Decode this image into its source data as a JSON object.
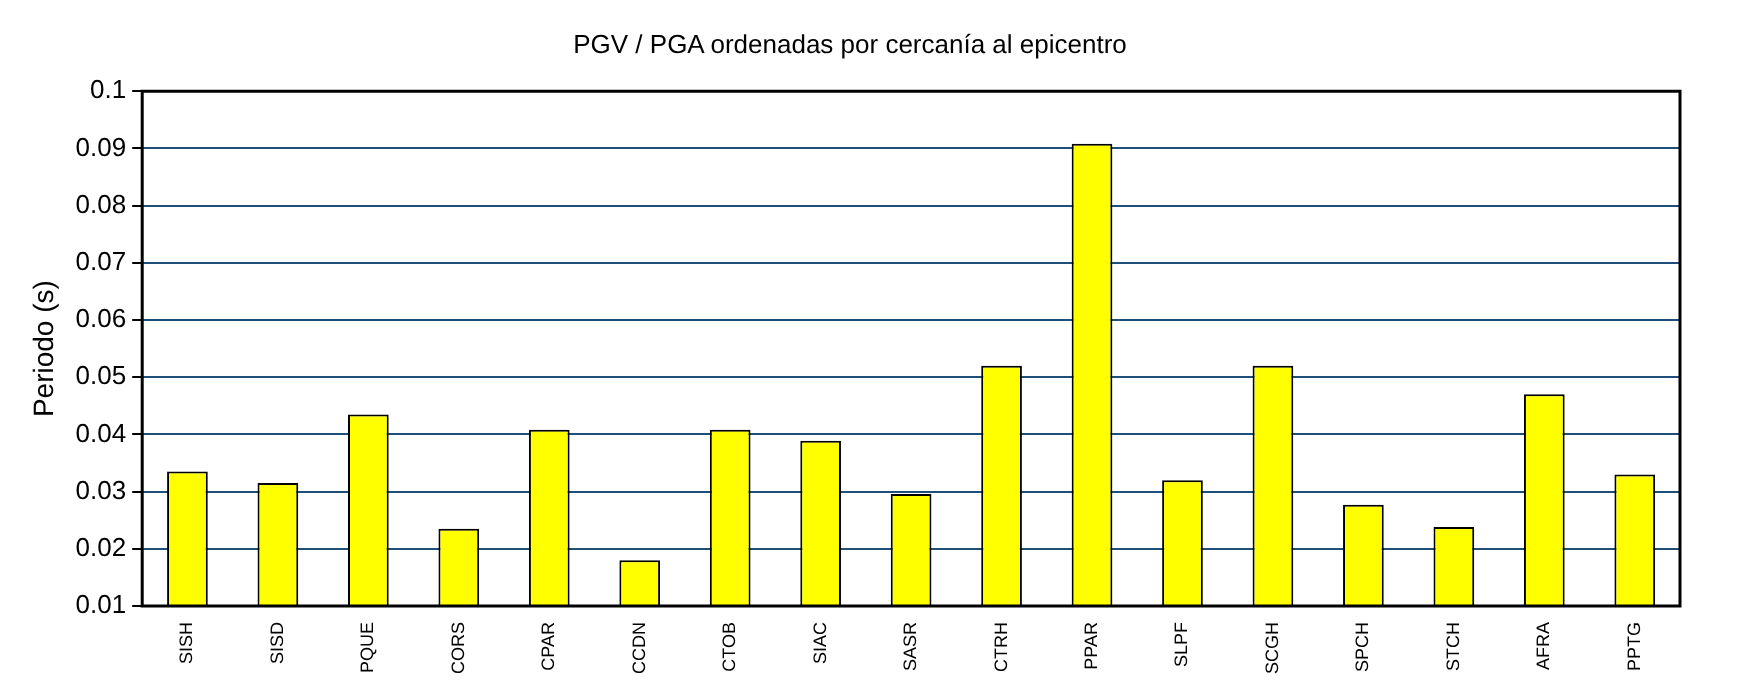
{
  "chart_data": {
    "type": "bar",
    "title": "PGV / PGA ordenadas por cercanía al epicentro",
    "ylabel": "Periodo (s)",
    "categories": [
      "SISH",
      "SISD",
      "PQUE",
      "CORS",
      "CPAR",
      "CCDN",
      "CTOB",
      "SIAC",
      "SASR",
      "CTRH",
      "PPAR",
      "SLPF",
      "SCGH",
      "SPCH",
      "STCH",
      "AFRA",
      "PPTG"
    ],
    "values": [
      0.0335,
      0.0315,
      0.0435,
      0.0235,
      0.0408,
      0.018,
      0.0408,
      0.0389,
      0.0296,
      0.052,
      0.0908,
      0.032,
      0.052,
      0.0277,
      0.0238,
      0.047,
      0.033
    ],
    "color": "#ffff00",
    "ylim": [
      0.01,
      0.1
    ],
    "yticks": [
      0.01,
      0.02,
      0.03,
      0.04,
      0.05,
      0.06,
      0.07,
      0.08,
      0.09,
      0.1
    ],
    "grid": "y"
  }
}
